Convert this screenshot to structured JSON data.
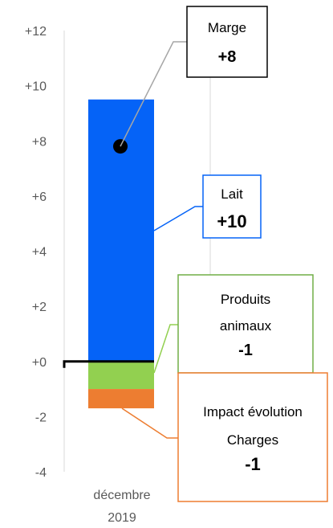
{
  "chart_data": {
    "type": "bar",
    "categories": [
      "décembre 2019"
    ],
    "category_label_lines": [
      "décembre",
      "2019"
    ],
    "ylim": [
      -4,
      12
    ],
    "y_ticks": [
      12,
      10,
      8,
      6,
      4,
      2,
      0,
      -2,
      -4
    ],
    "y_tick_labels": [
      "+12",
      "+10",
      "+8",
      "+6",
      "+4",
      "+2",
      "+0",
      "-2",
      "-4"
    ],
    "grid": "vertical",
    "series": [
      {
        "name": "Lait",
        "value": 9.5,
        "color": "#0563f7"
      },
      {
        "name": "Produits animaux",
        "value": -1.0,
        "color": "#92d050"
      },
      {
        "name": "Impact évolution Charges",
        "value": -0.7,
        "color": "#ed7d31"
      }
    ],
    "marge": {
      "value": 7.8,
      "marker_color": "#000000"
    },
    "annotations": [
      {
        "key": "marge",
        "lines": [
          "Marge"
        ],
        "value_label": "+8",
        "border_color": "#000000",
        "leader_color": "#a6a6a6"
      },
      {
        "key": "lait",
        "lines": [
          "Lait"
        ],
        "value_label": "+10",
        "border_color": "#0563f7",
        "leader_color": "#0563f7"
      },
      {
        "key": "produits",
        "lines": [
          "Produits",
          "animaux"
        ],
        "value_label": "-1",
        "border_color": "#70ad47",
        "leader_color": "#92d050"
      },
      {
        "key": "charges",
        "lines": [
          "Impact évolution",
          "Charges"
        ],
        "value_label": "-1",
        "border_color": "#ed7d31",
        "leader_color": "#ed7d31"
      }
    ]
  }
}
